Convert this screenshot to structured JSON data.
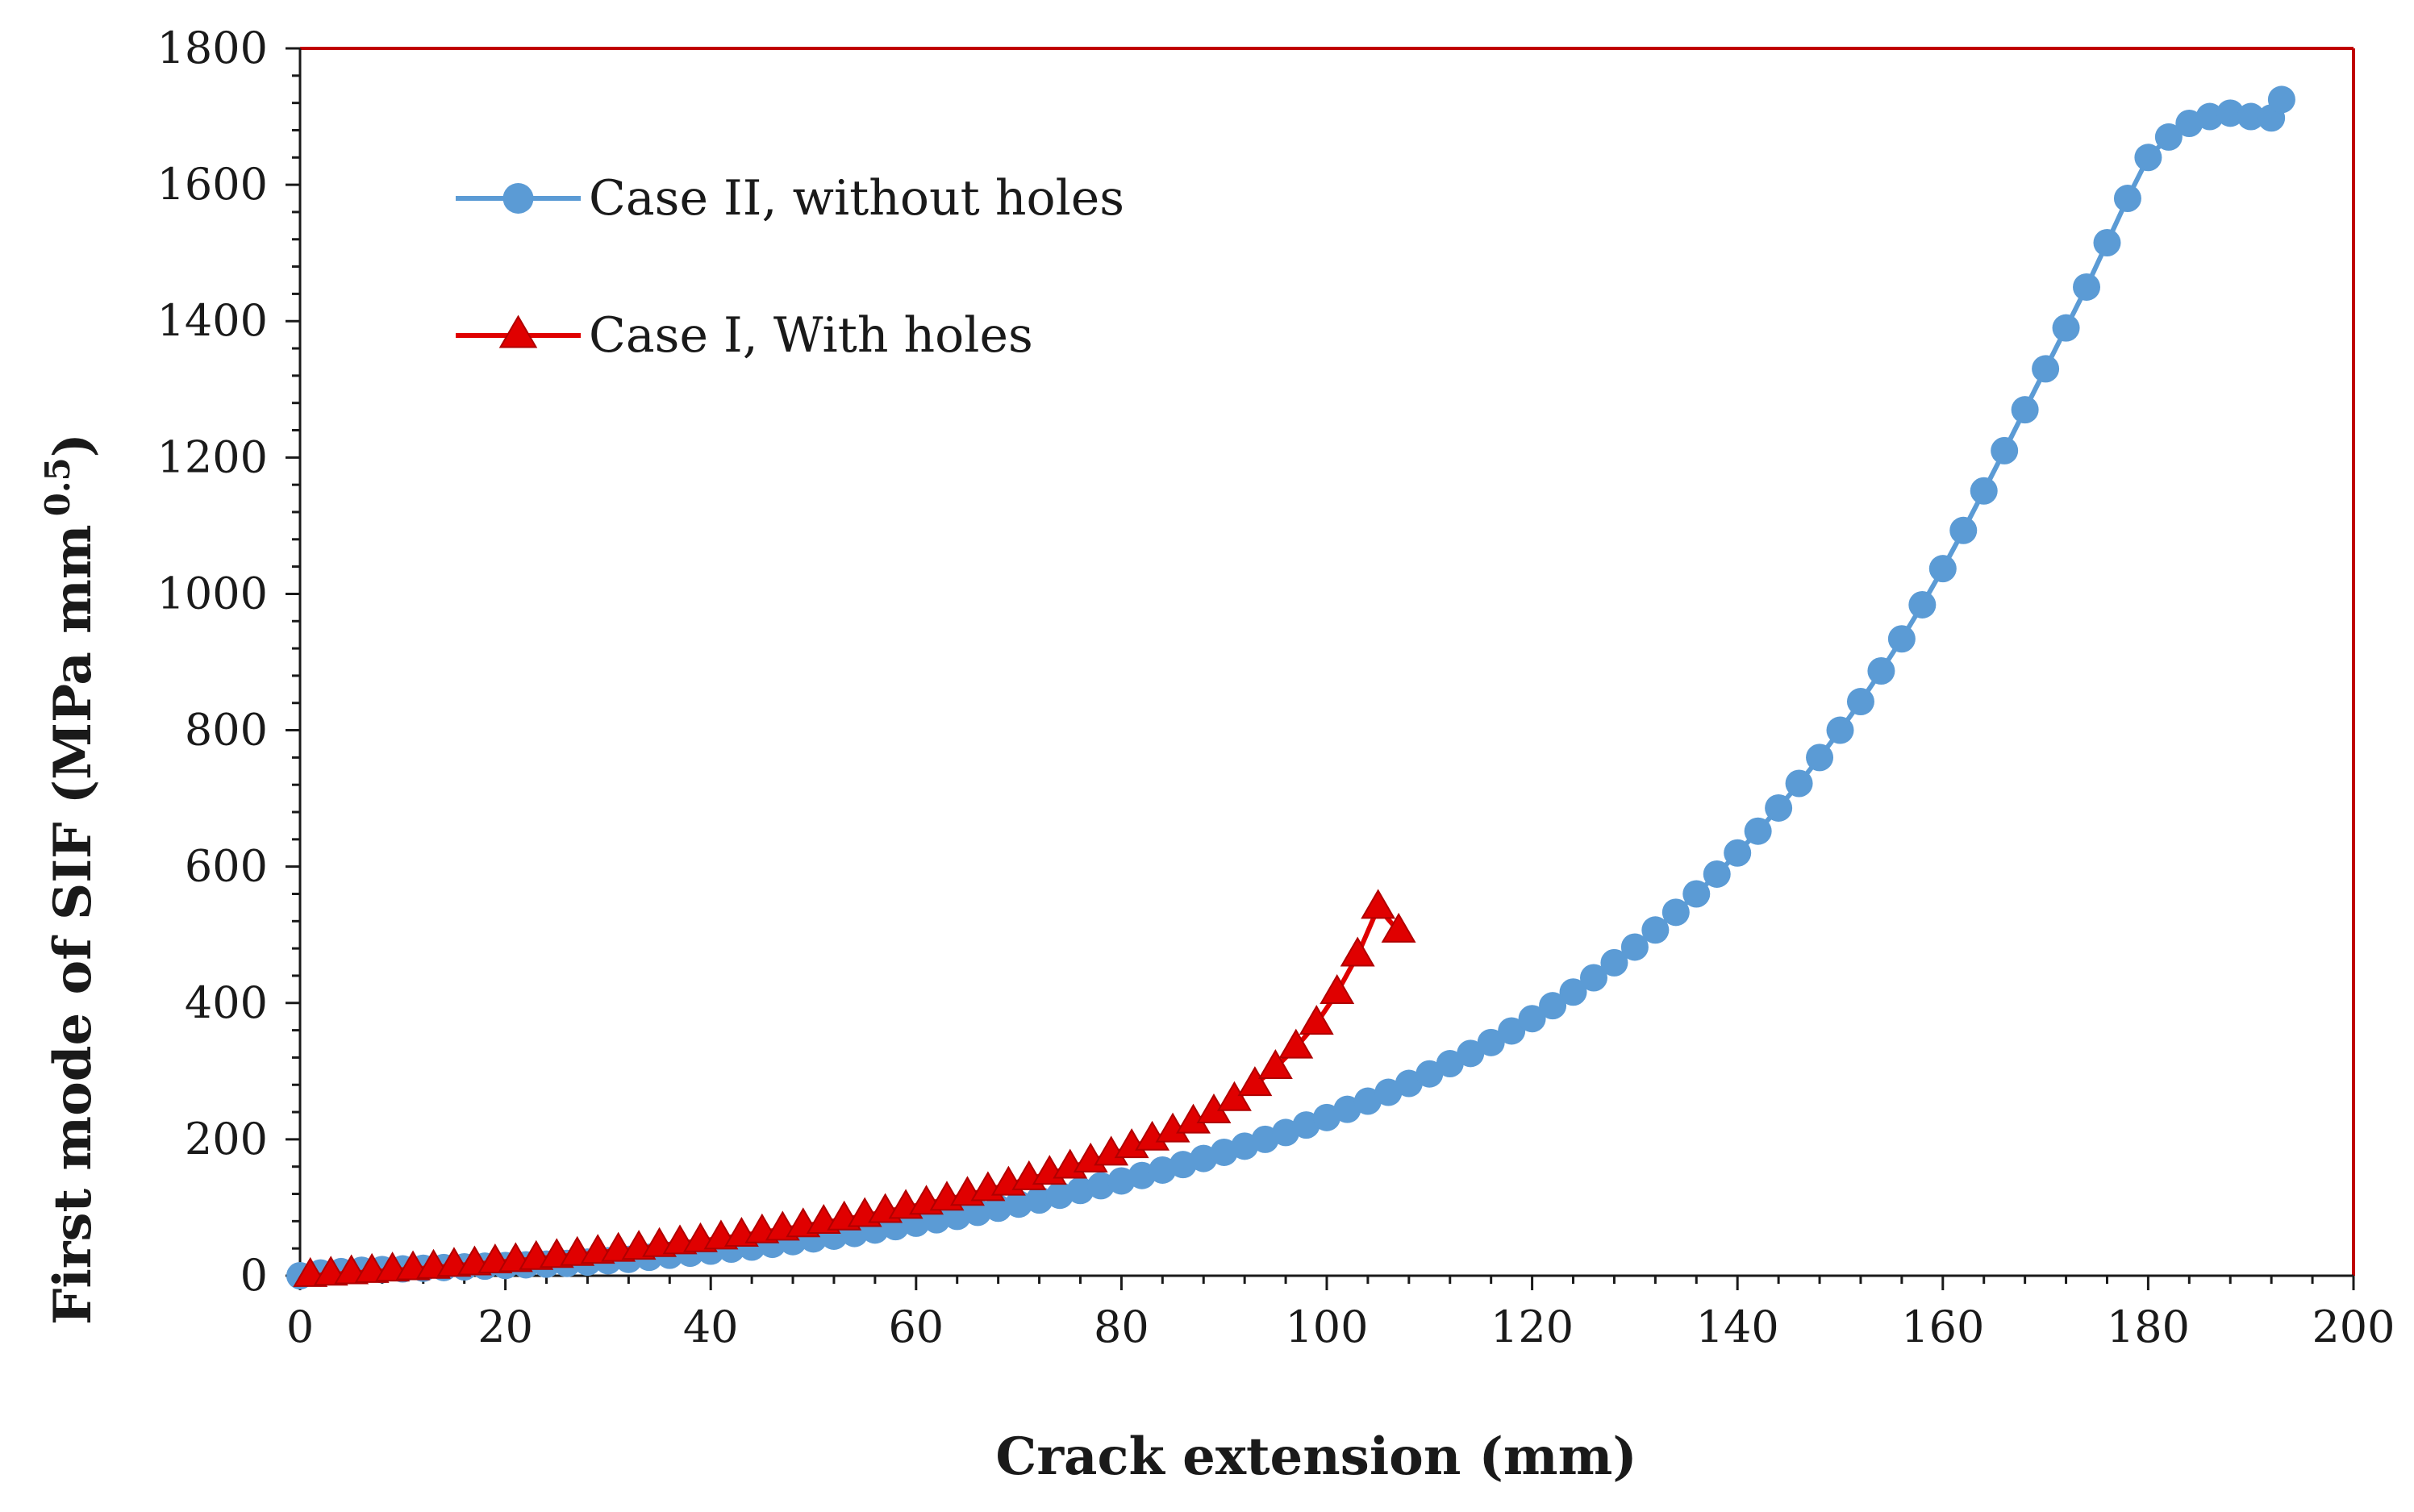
{
  "chart_data": {
    "type": "line",
    "title": "",
    "xlabel": "Crack extension (mm)",
    "ylabel": "First mode of SIF (MPa mm",
    "ylabel_superscript": "0.5",
    "ylabel_close": ")",
    "xlim": [
      0,
      200
    ],
    "ylim": [
      0,
      1800
    ],
    "xticks": [
      0,
      20,
      40,
      60,
      80,
      100,
      120,
      140,
      160,
      180,
      200
    ],
    "yticks": [
      0,
      200,
      400,
      600,
      800,
      1000,
      1200,
      1400,
      1600,
      1800
    ],
    "grid": false,
    "legend_position": "top-left",
    "frame_color": "#c00000",
    "series": [
      {
        "name": "Case II, without holes",
        "color": "#5b9bd5",
        "marker": "circle",
        "x": [
          0,
          2,
          4,
          6,
          8,
          10,
          12,
          14,
          16,
          18,
          20,
          22,
          24,
          26,
          28,
          30,
          32,
          34,
          36,
          38,
          40,
          42,
          44,
          46,
          48,
          50,
          52,
          54,
          56,
          58,
          60,
          62,
          64,
          66,
          68,
          70,
          72,
          74,
          76,
          78,
          80,
          82,
          84,
          86,
          88,
          90,
          92,
          94,
          96,
          98,
          100,
          102,
          104,
          106,
          108,
          110,
          112,
          114,
          116,
          118,
          120,
          122,
          124,
          126,
          128,
          130,
          132,
          134,
          136,
          138,
          140,
          142,
          144,
          146,
          148,
          150,
          152,
          154,
          156,
          158,
          160,
          162,
          164,
          166,
          168,
          170,
          172,
          174,
          176,
          178,
          180,
          182,
          184,
          186,
          188,
          190,
          192,
          193
        ],
        "values": [
          0,
          4,
          6,
          8,
          9,
          10,
          11,
          12,
          13,
          14,
          15,
          16,
          17,
          18,
          20,
          22,
          24,
          27,
          30,
          33,
          36,
          39,
          42,
          46,
          50,
          54,
          58,
          62,
          67,
          72,
          77,
          82,
          87,
          93,
          99,
          105,
          111,
          118,
          125,
          132,
          139,
          147,
          155,
          163,
          172,
          181,
          190,
          200,
          210,
          221,
          232,
          244,
          256,
          269,
          282,
          296,
          311,
          326,
          342,
          359,
          377,
          396,
          416,
          437,
          459,
          482,
          507,
          533,
          560,
          589,
          620,
          652,
          686,
          722,
          760,
          800,
          842,
          887,
          934,
          984,
          1037,
          1093,
          1151,
          1210,
          1270,
          1330,
          1390,
          1450,
          1515,
          1580,
          1640,
          1670,
          1690,
          1700,
          1705,
          1700,
          1698,
          1725
        ]
      },
      {
        "name": "Case I, With holes",
        "color": "#e00000",
        "marker": "triangle",
        "x": [
          1,
          3,
          5,
          7,
          9,
          11,
          13,
          15,
          17,
          19,
          21,
          23,
          25,
          27,
          29,
          31,
          33,
          35,
          37,
          39,
          41,
          43,
          45,
          47,
          49,
          51,
          53,
          55,
          57,
          59,
          61,
          63,
          65,
          67,
          69,
          71,
          73,
          75,
          77,
          79,
          81,
          83,
          85,
          87,
          89,
          91,
          93,
          95,
          97,
          99,
          101,
          103,
          105,
          107
        ],
        "values": [
          0,
          2,
          4,
          6,
          8,
          10,
          12,
          15,
          17,
          20,
          22,
          25,
          28,
          31,
          34,
          37,
          40,
          44,
          48,
          51,
          55,
          59,
          64,
          68,
          73,
          78,
          83,
          88,
          94,
          100,
          106,
          112,
          119,
          126,
          134,
          142,
          150,
          159,
          168,
          178,
          189,
          200,
          212,
          225,
          240,
          258,
          280,
          305,
          335,
          370,
          415,
          470,
          540,
          505
        ]
      }
    ]
  }
}
